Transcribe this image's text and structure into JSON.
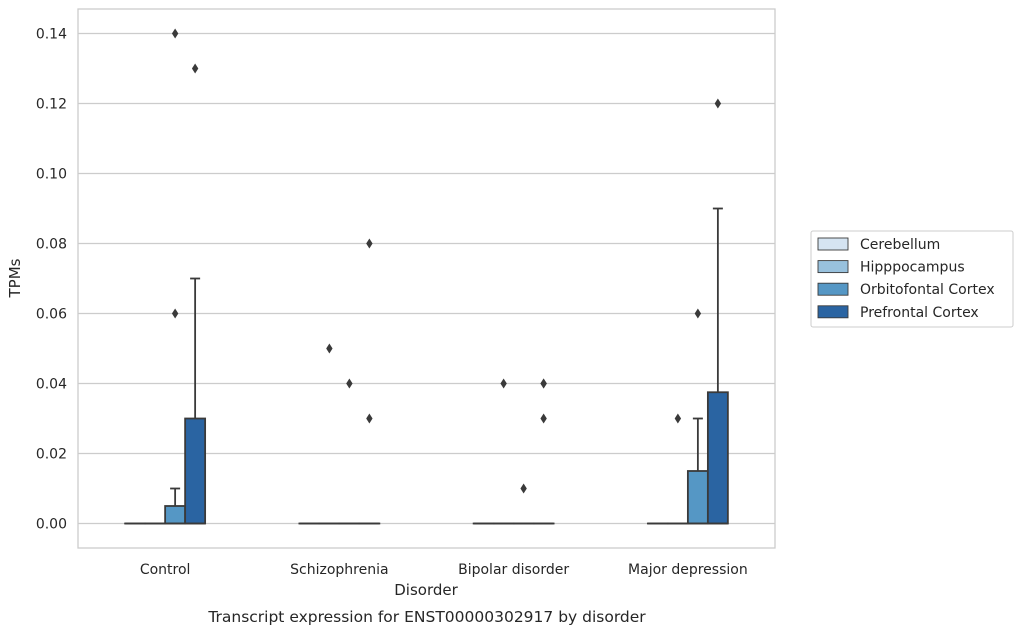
{
  "chart_data": {
    "type": "box",
    "title": "",
    "caption": "Transcript expression for ENST00000302917 by disorder",
    "xlabel": "Disorder",
    "ylabel": "TPMs",
    "ylim": [
      -0.007,
      0.147
    ],
    "yticks": [
      0.0,
      0.02,
      0.04,
      0.06,
      0.08,
      0.1,
      0.12,
      0.14
    ],
    "ytick_labels": [
      "0.00",
      "0.02",
      "0.04",
      "0.06",
      "0.08",
      "0.10",
      "0.12",
      "0.14"
    ],
    "grid": "horizontal",
    "legend_position": "right",
    "categories": [
      "Control",
      "Schizophrenia",
      "Bipolar disorder",
      "Major depression"
    ],
    "series": [
      {
        "name": "Cerebellum",
        "color": "#d5e4f2",
        "boxes": [
          {
            "q1": 0,
            "median": 0,
            "q3": 0,
            "whisker_low": 0,
            "whisker_high": 0,
            "outliers": []
          },
          {
            "q1": 0,
            "median": 0,
            "q3": 0,
            "whisker_low": 0,
            "whisker_high": 0,
            "outliers": []
          },
          {
            "q1": 0,
            "median": 0,
            "q3": 0,
            "whisker_low": 0,
            "whisker_high": 0,
            "outliers": []
          },
          {
            "q1": 0,
            "median": 0,
            "q3": 0,
            "whisker_low": 0,
            "whisker_high": 0,
            "outliers": []
          }
        ]
      },
      {
        "name": "Hipppocampus",
        "color": "#98c1dd",
        "boxes": [
          {
            "q1": 0,
            "median": 0,
            "q3": 0,
            "whisker_low": 0,
            "whisker_high": 0,
            "outliers": []
          },
          {
            "q1": 0,
            "median": 0,
            "q3": 0,
            "whisker_low": 0,
            "whisker_high": 0,
            "outliers": [
              0.05
            ]
          },
          {
            "q1": 0,
            "median": 0,
            "q3": 0,
            "whisker_low": 0,
            "whisker_high": 0,
            "outliers": [
              0.04
            ]
          },
          {
            "q1": 0,
            "median": 0,
            "q3": 0,
            "whisker_low": 0,
            "whisker_high": 0,
            "outliers": [
              0.03
            ]
          }
        ]
      },
      {
        "name": "Orbitofontal Cortex",
        "color": "#5597c5",
        "boxes": [
          {
            "q1": 0,
            "median": 0,
            "q3": 0.005,
            "whisker_low": 0,
            "whisker_high": 0.01,
            "outliers": [
              0.06,
              0.14
            ]
          },
          {
            "q1": 0,
            "median": 0,
            "q3": 0,
            "whisker_low": 0,
            "whisker_high": 0,
            "outliers": [
              0.04
            ]
          },
          {
            "q1": 0,
            "median": 0,
            "q3": 0,
            "whisker_low": 0,
            "whisker_high": 0,
            "outliers": [
              0.01
            ]
          },
          {
            "q1": 0,
            "median": 0,
            "q3": 0.015,
            "whisker_low": 0,
            "whisker_high": 0.03,
            "outliers": [
              0.06
            ]
          }
        ]
      },
      {
        "name": "Prefrontal Cortex",
        "color": "#2a64a2",
        "boxes": [
          {
            "q1": 0,
            "median": 0,
            "q3": 0.03,
            "whisker_low": 0,
            "whisker_high": 0.07,
            "outliers": [
              0.13
            ]
          },
          {
            "q1": 0,
            "median": 0,
            "q3": 0,
            "whisker_low": 0,
            "whisker_high": 0,
            "outliers": [
              0.03,
              0.08
            ]
          },
          {
            "q1": 0,
            "median": 0,
            "q3": 0,
            "whisker_low": 0,
            "whisker_high": 0,
            "outliers": [
              0.03,
              0.04,
              0.04
            ]
          },
          {
            "q1": 0,
            "median": 0,
            "q3": 0.0375,
            "whisker_low": 0,
            "whisker_high": 0.09,
            "outliers": [
              0.12
            ]
          }
        ]
      }
    ]
  }
}
